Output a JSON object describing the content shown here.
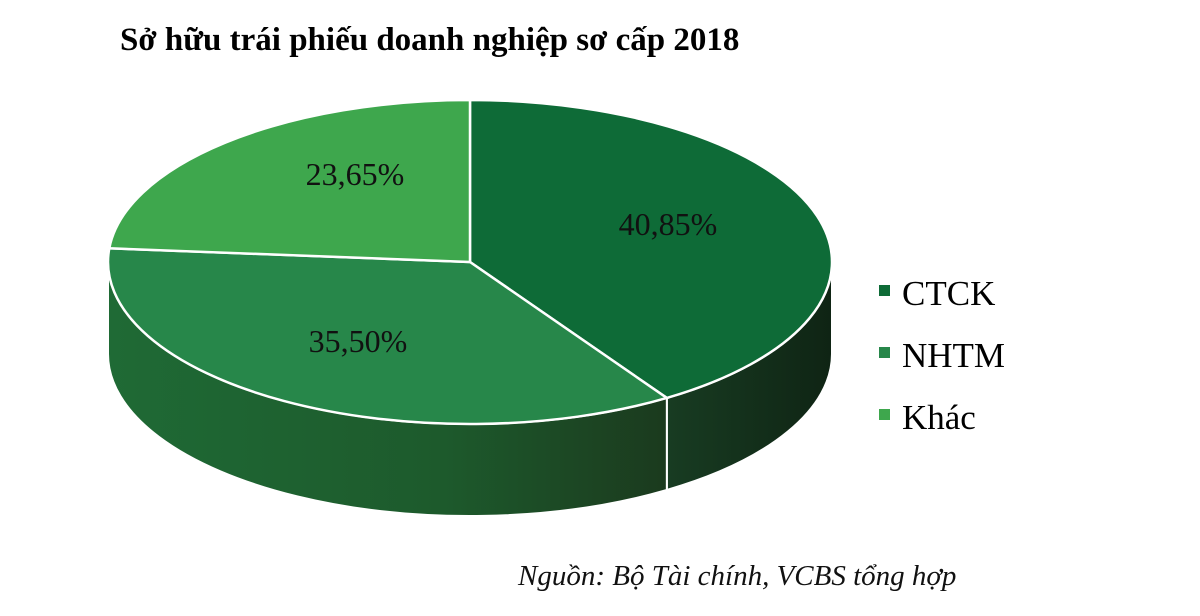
{
  "chart_data": {
    "type": "pie",
    "title": "Sở hữu trái phiếu doanh nghiệp sơ cấp 2018",
    "source": "Nguồn: Bộ Tài chính, VCBS tổng hợp",
    "style": "3d",
    "legend_position": "right",
    "slices": [
      {
        "name": "CTCK",
        "value": 40.85,
        "label": "40,85%",
        "color": "#0e6b37"
      },
      {
        "name": "NHTM",
        "value": 35.5,
        "label": "35,50%",
        "color": "#27874a"
      },
      {
        "name": "Khác",
        "value": 23.65,
        "label": "23,65%",
        "color": "#3ea74d"
      }
    ]
  }
}
